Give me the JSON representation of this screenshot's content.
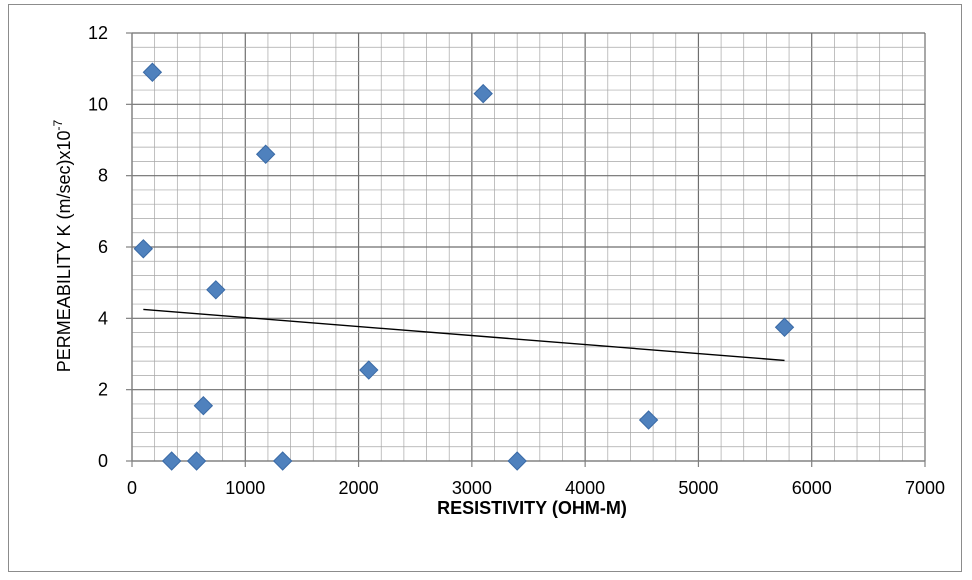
{
  "chart_data": {
    "type": "scatter",
    "title": "",
    "xlabel": "RESISTIVITY (OHM-M)",
    "ylabel_main": "PERMEABILITY K (m/sec)x10",
    "ylabel_exp": "-7",
    "xlim": [
      0,
      7000
    ],
    "ylim": [
      0,
      12
    ],
    "x_major_step": 1000,
    "y_major_step": 2,
    "x_minor_step": 200,
    "y_minor_step": 0.4,
    "grid": true,
    "legend": "none",
    "x_ticks": [
      "0",
      "1000",
      "2000",
      "3000",
      "4000",
      "5000",
      "6000",
      "7000"
    ],
    "y_ticks": [
      "0",
      "2",
      "4",
      "6",
      "8",
      "10",
      "12"
    ],
    "points": [
      {
        "x": 100,
        "y": 5.95
      },
      {
        "x": 180,
        "y": 10.9
      },
      {
        "x": 350,
        "y": 0
      },
      {
        "x": 570,
        "y": 0
      },
      {
        "x": 630,
        "y": 1.55
      },
      {
        "x": 740,
        "y": 4.8
      },
      {
        "x": 1180,
        "y": 8.6
      },
      {
        "x": 1330,
        "y": 0
      },
      {
        "x": 2090,
        "y": 2.55
      },
      {
        "x": 3100,
        "y": 10.3
      },
      {
        "x": 3400,
        "y": 0
      },
      {
        "x": 4560,
        "y": 1.15
      },
      {
        "x": 5760,
        "y": 3.75
      }
    ],
    "trendline": {
      "x": [
        100,
        5760
      ],
      "y": [
        4.25,
        2.82
      ]
    },
    "colors": {
      "marker": "#4f81bd",
      "trendline": "#000000",
      "grid": "#7f7f7f"
    }
  }
}
